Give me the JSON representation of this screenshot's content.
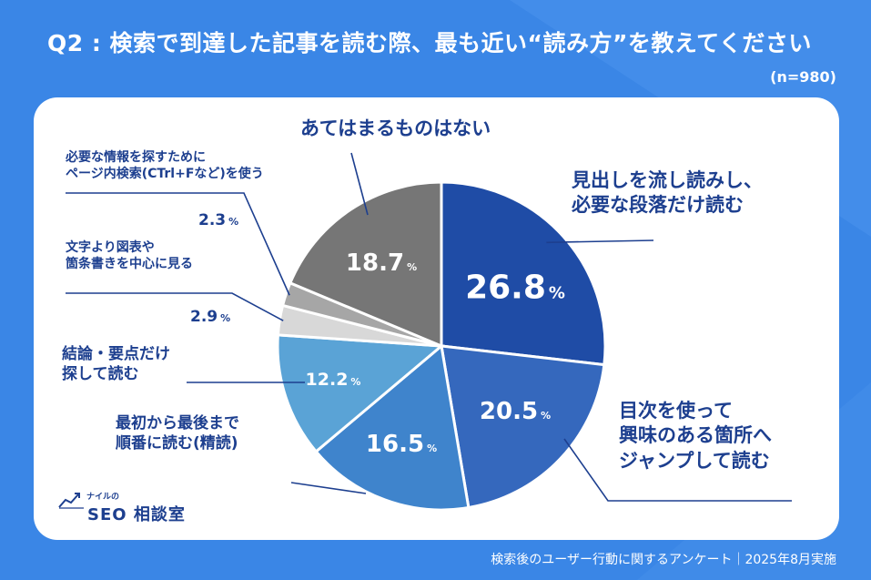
{
  "header": {
    "title": "Q2 : 検索で到達した記事を読む際、最も近い“読み方”を教えてください",
    "n": "(n=980)"
  },
  "footer": "検索後のユーザー行動に関するアンケート｜2025年8月実施",
  "logo": {
    "small": "ナイルの",
    "main": "SEO 相談室"
  },
  "chart_data": {
    "type": "pie",
    "unit": "%",
    "slices": [
      {
        "label": "見出しを流し読みし、必要な段落だけ読む",
        "lines": [
          "見出しを流し読みし、",
          "必要な段落だけ読む"
        ],
        "value": 26.8,
        "display": "26.8",
        "color": "#1f4ca6"
      },
      {
        "label": "目次を使って興味のある箇所へジャンプして読む",
        "lines": [
          "目次を使って",
          "興味のある箇所へ",
          "ジャンプして読む"
        ],
        "value": 20.5,
        "display": "20.5",
        "color": "#3568bd"
      },
      {
        "label": "最初から最後まで順番に読む(精読)",
        "lines": [
          "最初から最後まで",
          "順番に読む(精読)"
        ],
        "value": 16.5,
        "display": "16.5",
        "color": "#3f84cc"
      },
      {
        "label": "結論・要点だけ探して読む",
        "lines": [
          "結論・要点だけ",
          "探して読む"
        ],
        "value": 12.2,
        "display": "12.2",
        "color": "#5aa3d6"
      },
      {
        "label": "文字より図表や箇条書きを中心に見る",
        "lines": [
          "文字より図表や",
          "箇条書きを中心に見る"
        ],
        "value": 2.9,
        "display": "2.9",
        "color": "#d8d8d8"
      },
      {
        "label": "必要な情報を探すためにページ内検索(CTrl+Fなど)を使う",
        "lines": [
          "必要な情報を探すために",
          "ページ内検索(CTrl+Fなど)を使う"
        ],
        "value": 2.3,
        "display": "2.3",
        "color": "#a6a6a6"
      },
      {
        "label": "あてはまるものはない",
        "lines": [
          "あてはまるものはない"
        ],
        "value": 18.7,
        "display": "18.7",
        "color": "#767676"
      }
    ]
  }
}
